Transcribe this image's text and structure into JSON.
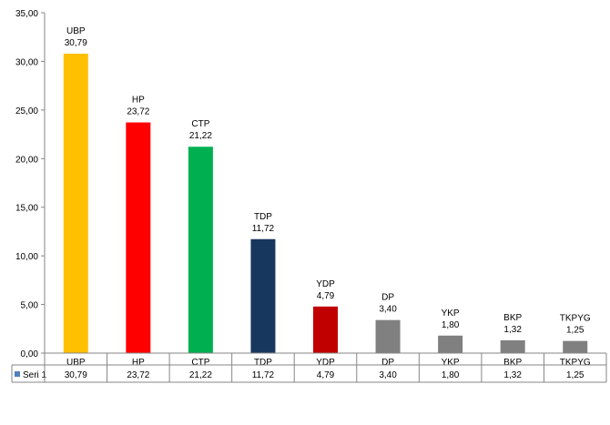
{
  "chart_data": {
    "type": "bar",
    "categories": [
      "UBP",
      "HP",
      "CTP",
      "TDP",
      "YDP",
      "DP",
      "YKP",
      "BKP",
      "TKPYG"
    ],
    "series": [
      {
        "name": "Seri 1",
        "values": [
          30.79,
          23.72,
          21.22,
          11.72,
          4.79,
          3.4,
          1.8,
          1.32,
          1.25
        ],
        "value_labels": [
          "30,79",
          "23,72",
          "21,22",
          "11,72",
          "4,79",
          "3,40",
          "1,80",
          "1,32",
          "1,25"
        ]
      }
    ],
    "bar_colors": [
      "#FFC000",
      "#FF0000",
      "#00B050",
      "#17375E",
      "#C00000",
      "#808080",
      "#808080",
      "#808080",
      "#808080"
    ],
    "ylim": [
      0,
      35
    ],
    "yticks": [
      0,
      5,
      10,
      15,
      20,
      25,
      30,
      35
    ],
    "ytick_labels": [
      "0,00",
      "5,00",
      "10,00",
      "15,00",
      "20,00",
      "25,00",
      "30,00",
      "35,00"
    ],
    "title": "",
    "xlabel": "",
    "ylabel": "",
    "grid": false,
    "legend": "data-table",
    "legend_color": "#4F81BD"
  }
}
